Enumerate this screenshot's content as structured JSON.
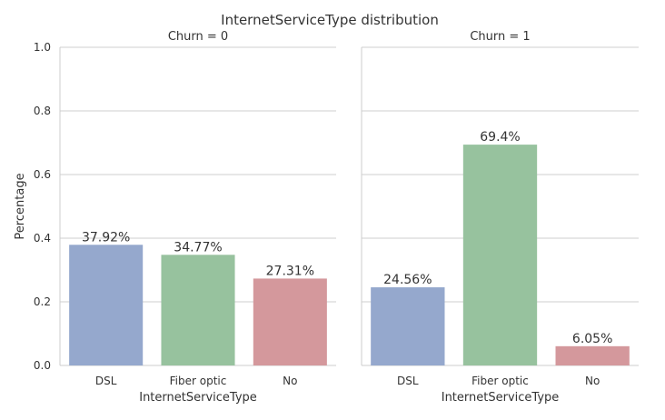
{
  "chart_data": {
    "type": "bar",
    "title": "InternetServiceType distribution",
    "ylabel": "Percentage",
    "ylim": [
      0,
      1.0
    ],
    "yticks": [
      "0.0",
      "0.2",
      "0.4",
      "0.6",
      "0.8",
      "1.0"
    ],
    "grid": true,
    "colors": [
      "#95a8cd",
      "#97c29e",
      "#d4989c"
    ],
    "panels": [
      {
        "title": "Churn = 0",
        "xlabel": "InternetServiceType",
        "categories": [
          "DSL",
          "Fiber optic",
          "No"
        ],
        "values": [
          0.3792,
          0.3477,
          0.2731
        ],
        "labels": [
          "37.92%",
          "34.77%",
          "27.31%"
        ]
      },
      {
        "title": "Churn = 1",
        "xlabel": "InternetServiceType",
        "categories": [
          "DSL",
          "Fiber optic",
          "No"
        ],
        "values": [
          0.2456,
          0.694,
          0.0605
        ],
        "labels": [
          "24.56%",
          "69.4%",
          "6.05%"
        ]
      }
    ]
  }
}
